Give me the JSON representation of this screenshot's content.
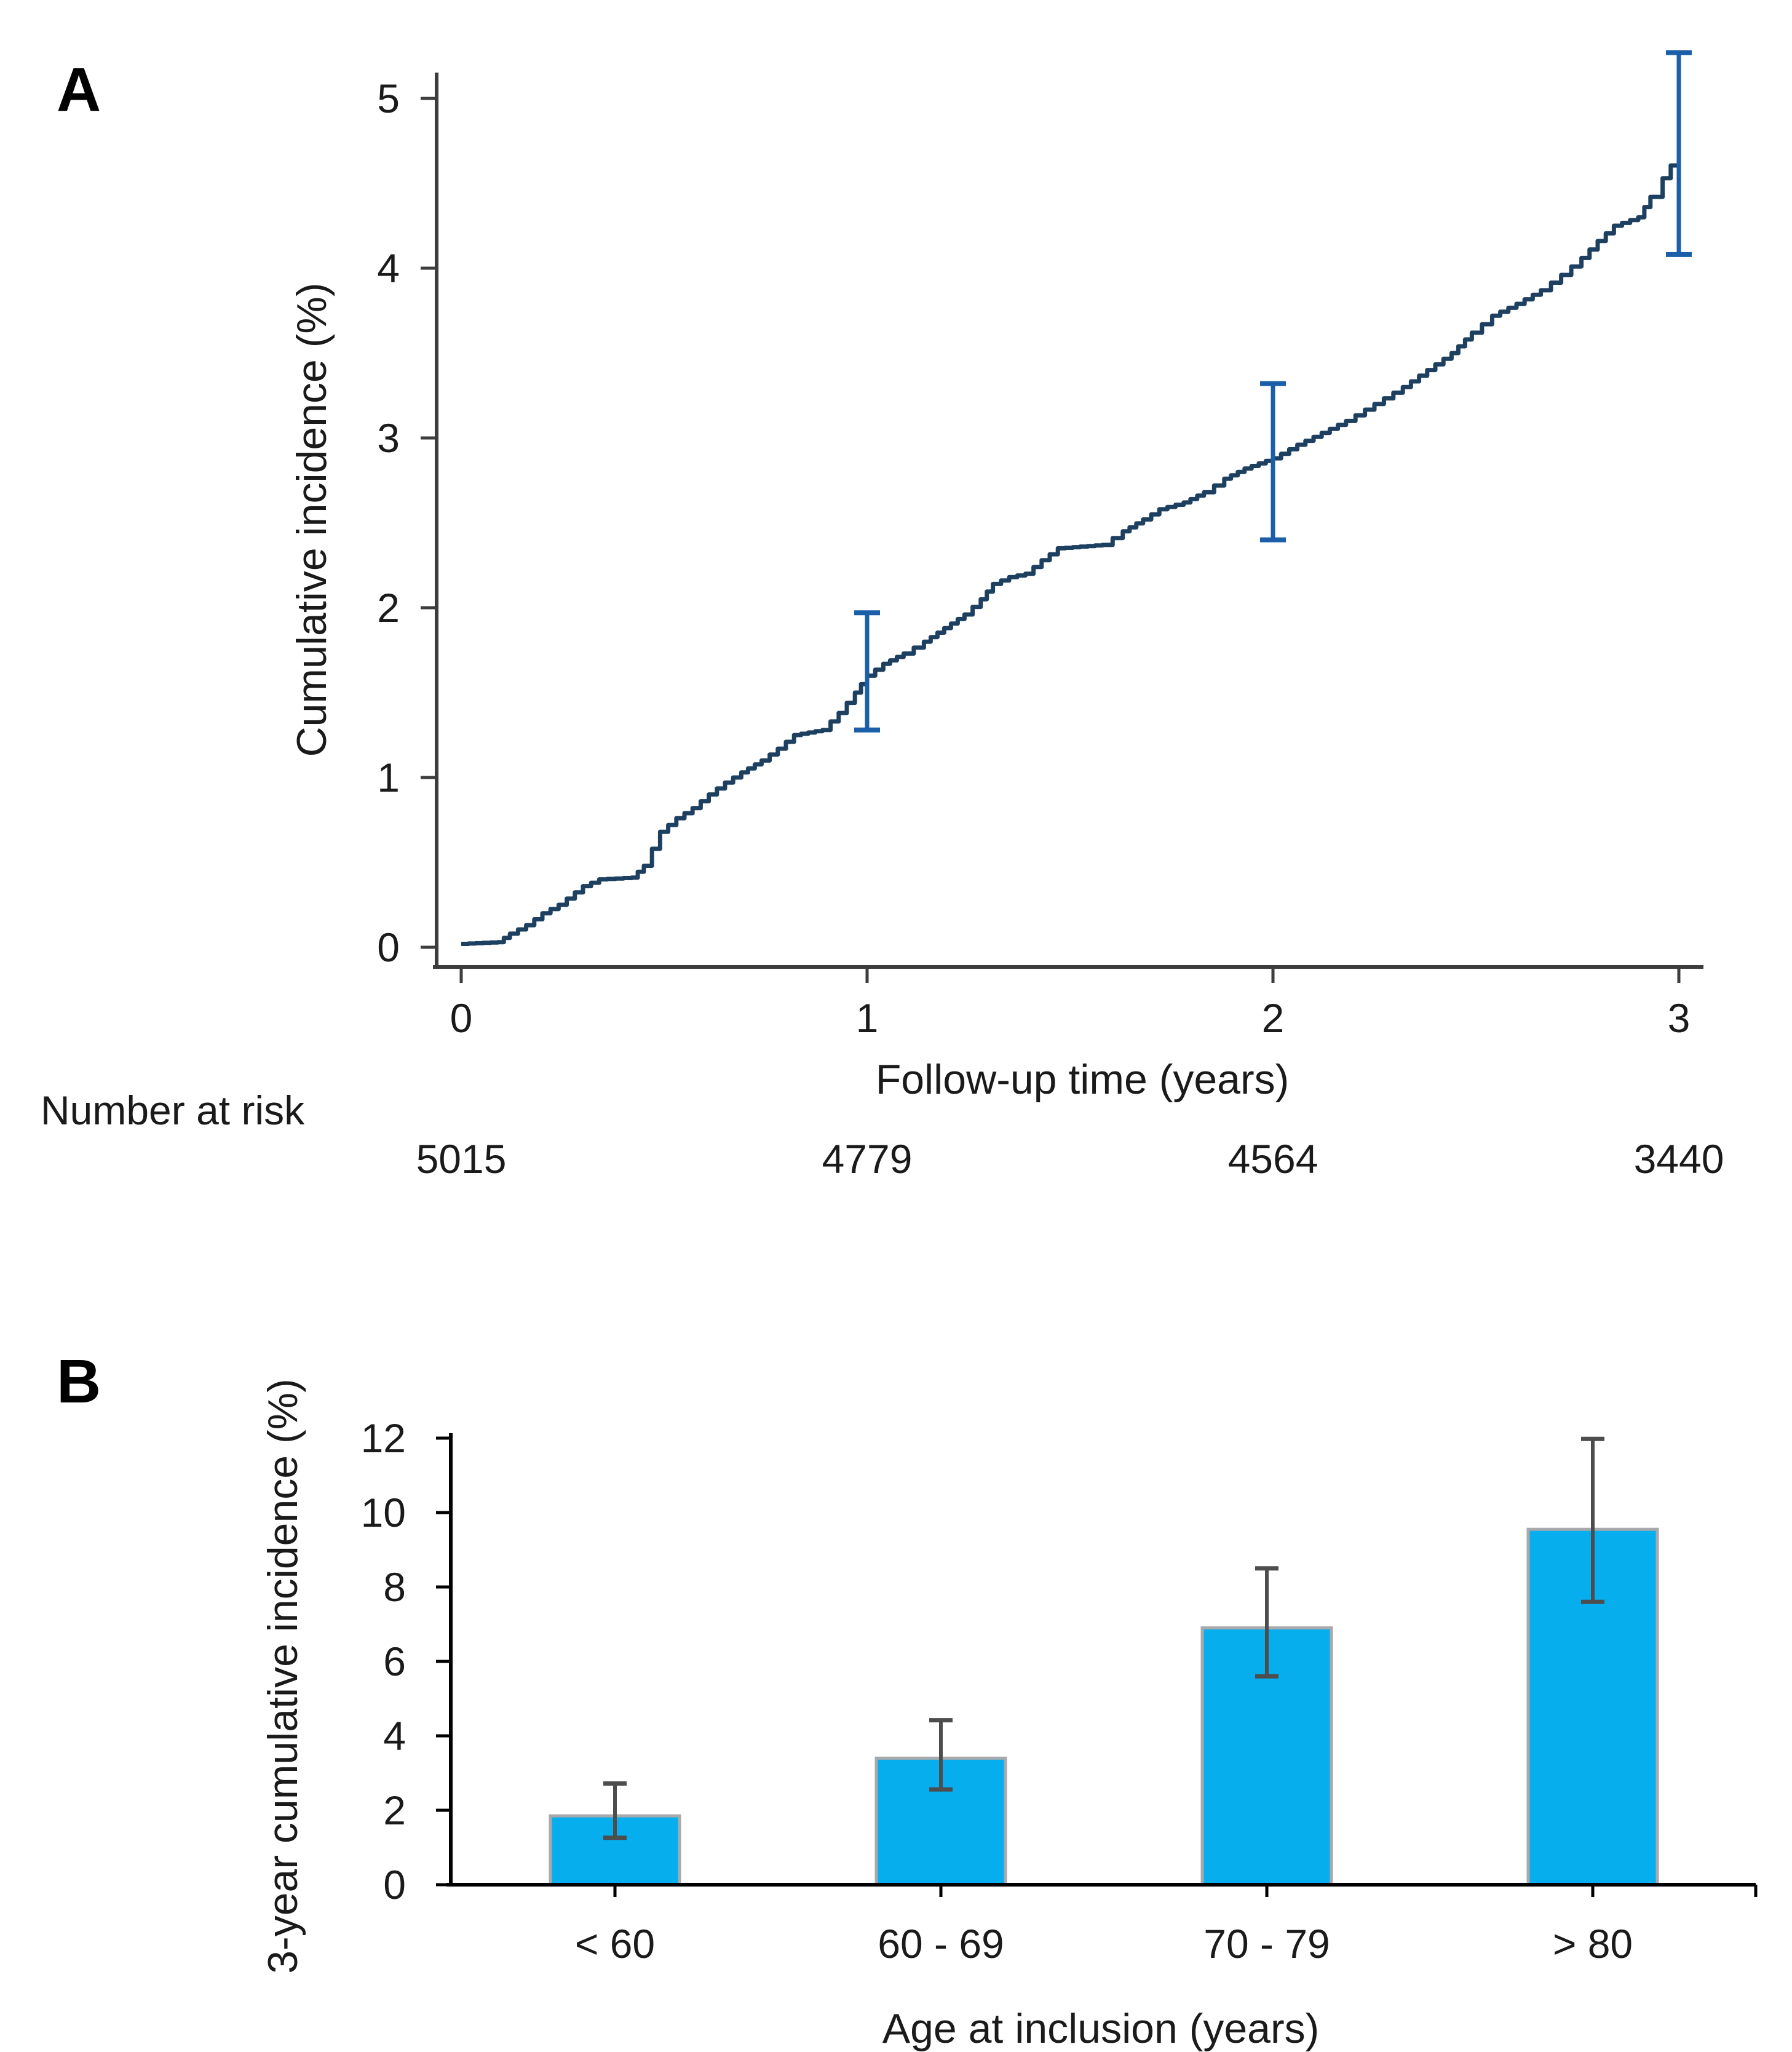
{
  "style": {
    "background": "#ffffff",
    "text_color": "#1a1a1a",
    "axis_color_panel_a": "#3d3d3d",
    "axis_color_panel_b": "#000000"
  },
  "panels": {
    "a": {
      "label": "A",
      "xlabel": "Follow-up time (years)",
      "ylabel": "Cumulative incidence (%)",
      "number_at_risk_label": "Number at risk"
    },
    "b": {
      "label": "B",
      "xlabel": "Age at inclusion (years)",
      "ylabel": "3-year cumulative incidence (%)"
    }
  },
  "chart_data": [
    {
      "id": "panel-a",
      "type": "line",
      "subtype": "step-cumulative-incidence",
      "title": "",
      "xlabel": "Follow-up time (years)",
      "ylabel": "Cumulative incidence (%)",
      "xlim": [
        0,
        3
      ],
      "ylim": [
        0,
        5
      ],
      "xticks": [
        0,
        1,
        2,
        3
      ],
      "yticks": [
        0,
        1,
        2,
        3,
        4,
        5
      ],
      "grid": false,
      "legend": false,
      "line_color": "#1e4060",
      "errorbar_color": "#1a5fa8",
      "points": [
        [
          0,
          0.02
        ],
        [
          0.09,
          0.03
        ],
        [
          0.12,
          0.08
        ],
        [
          0.16,
          0.13
        ],
        [
          0.2,
          0.2
        ],
        [
          0.24,
          0.25
        ],
        [
          0.3,
          0.36
        ],
        [
          0.34,
          0.4
        ],
        [
          0.42,
          0.41
        ],
        [
          0.45,
          0.48
        ],
        [
          0.47,
          0.58
        ],
        [
          0.49,
          0.68
        ],
        [
          0.53,
          0.76
        ],
        [
          0.57,
          0.82
        ],
        [
          0.61,
          0.9
        ],
        [
          0.65,
          0.97
        ],
        [
          0.69,
          1.03
        ],
        [
          0.74,
          1.1
        ],
        [
          0.78,
          1.17
        ],
        [
          0.82,
          1.25
        ],
        [
          0.89,
          1.28
        ],
        [
          0.93,
          1.38
        ],
        [
          0.97,
          1.5
        ],
        [
          1.0,
          1.6
        ],
        [
          1.04,
          1.67
        ],
        [
          1.09,
          1.73
        ],
        [
          1.14,
          1.8
        ],
        [
          1.19,
          1.88
        ],
        [
          1.24,
          1.96
        ],
        [
          1.28,
          2.05
        ],
        [
          1.31,
          2.14
        ],
        [
          1.35,
          2.18
        ],
        [
          1.39,
          2.2
        ],
        [
          1.43,
          2.28
        ],
        [
          1.47,
          2.35
        ],
        [
          1.58,
          2.37
        ],
        [
          1.63,
          2.45
        ],
        [
          1.68,
          2.52
        ],
        [
          1.72,
          2.58
        ],
        [
          1.78,
          2.62
        ],
        [
          1.83,
          2.68
        ],
        [
          1.88,
          2.76
        ],
        [
          1.93,
          2.82
        ],
        [
          2.0,
          2.88
        ],
        [
          2.06,
          2.96
        ],
        [
          2.12,
          3.03
        ],
        [
          2.18,
          3.1
        ],
        [
          2.25,
          3.2
        ],
        [
          2.32,
          3.3
        ],
        [
          2.38,
          3.4
        ],
        [
          2.44,
          3.5
        ],
        [
          2.49,
          3.62
        ],
        [
          2.54,
          3.72
        ],
        [
          2.6,
          3.79
        ],
        [
          2.66,
          3.87
        ],
        [
          2.71,
          3.96
        ],
        [
          2.76,
          4.06
        ],
        [
          2.8,
          4.16
        ],
        [
          2.84,
          4.25
        ],
        [
          2.9,
          4.3
        ],
        [
          2.93,
          4.42
        ],
        [
          2.96,
          4.53
        ],
        [
          3.0,
          4.68
        ]
      ],
      "error_bars": [
        {
          "x": 1,
          "estimate": 1.6,
          "low": 1.28,
          "high": 1.97
        },
        {
          "x": 2,
          "estimate": 2.87,
          "low": 2.4,
          "high": 3.32
        },
        {
          "x": 3,
          "estimate": 4.68,
          "low": 4.08,
          "high": 5.27
        }
      ],
      "number_at_risk": {
        "label": "Number at risk",
        "x": [
          0,
          1,
          2,
          3
        ],
        "values": [
          "5015",
          "4779",
          "4564",
          "3440"
        ]
      }
    },
    {
      "id": "panel-b",
      "type": "bar",
      "title": "",
      "categories": [
        "< 60",
        "60 - 69",
        "70 - 79",
        "> 80"
      ],
      "values": [
        1.85,
        3.4,
        6.9,
        9.55
      ],
      "error_low": [
        1.26,
        2.56,
        5.6,
        7.6
      ],
      "error_high": [
        2.72,
        4.42,
        8.5,
        11.98
      ],
      "xlabel": "Age at inclusion (years)",
      "ylabel": "3-year cumulative incidence (%)",
      "ylim": [
        0,
        12
      ],
      "yticks": [
        0,
        2,
        4,
        6,
        8,
        10,
        12
      ],
      "grid": false,
      "legend": false,
      "bar_color": "#06aeed",
      "bar_edge_color": "#a7a9ac",
      "errorbar_color": "#4d4d4d"
    }
  ]
}
